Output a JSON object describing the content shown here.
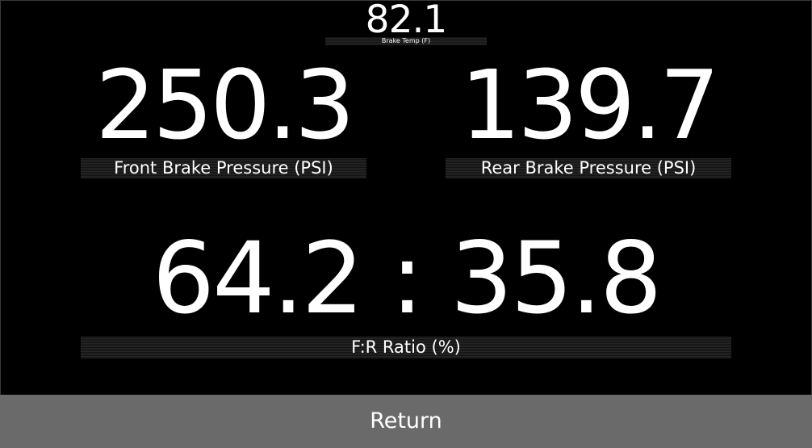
{
  "brake_temp": {
    "value": "82.1",
    "label": "Brake Temp (F)"
  },
  "front_brake": {
    "value": "250.3",
    "label": "Front Brake Pressure (PSI)"
  },
  "rear_brake": {
    "value": "139.7",
    "label": "Rear Brake Pressure (PSI)"
  },
  "ratio": {
    "value": "64.2 : 35.8",
    "label": "F:R Ratio (%)"
  },
  "return_button": {
    "label": "Return"
  },
  "colors": {
    "background": "#000000",
    "text": "#ffffff",
    "label_bar": "#1e1e1e",
    "button": "#6a6a6a"
  }
}
